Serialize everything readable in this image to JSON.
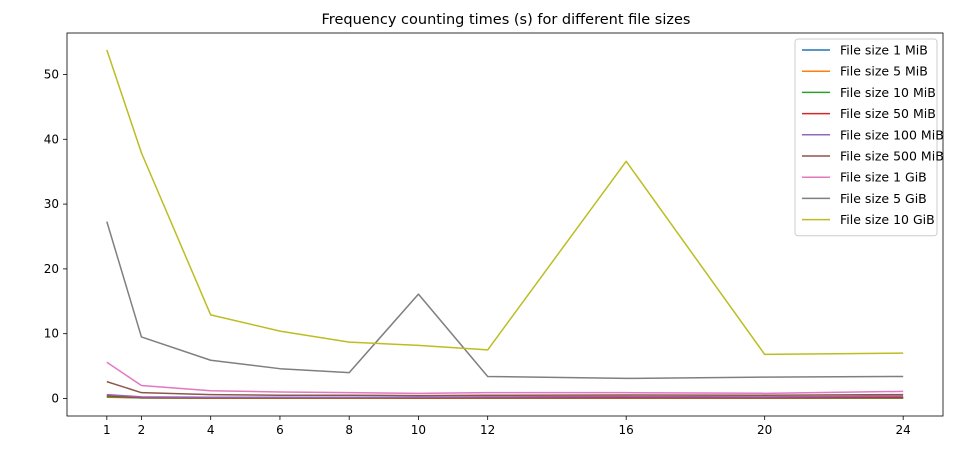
{
  "chart_data": {
    "type": "line",
    "title": "Frequency counting times (s) for different file sizes",
    "xlabel": "",
    "ylabel": "",
    "x": [
      1,
      2,
      4,
      6,
      8,
      10,
      12,
      16,
      20,
      24
    ],
    "xticks": [
      1,
      2,
      4,
      6,
      8,
      10,
      12,
      16,
      20,
      24
    ],
    "yticks": [
      0,
      10,
      20,
      30,
      40,
      50
    ],
    "xlim": [
      -0.15,
      25.15
    ],
    "ylim": [
      -2.7,
      56.4
    ],
    "grid": false,
    "legend_position": "upper right",
    "series": [
      {
        "name": "File size 1 MiB",
        "color": "#1f77b4",
        "values": [
          0.35,
          0.1,
          0.05,
          0.05,
          0.05,
          0.05,
          0.05,
          0.05,
          0.05,
          0.05
        ]
      },
      {
        "name": "File size 5 MiB",
        "color": "#ff7f0e",
        "values": [
          0.2,
          0.1,
          0.05,
          0.05,
          0.05,
          0.05,
          0.05,
          0.05,
          0.05,
          0.05
        ]
      },
      {
        "name": "File size 10 MiB",
        "color": "#2ca02c",
        "values": [
          0.25,
          0.1,
          0.08,
          0.07,
          0.07,
          0.07,
          0.07,
          0.07,
          0.07,
          0.07
        ]
      },
      {
        "name": "File size 50 MiB",
        "color": "#d62728",
        "values": [
          0.45,
          0.15,
          0.12,
          0.12,
          0.12,
          0.1,
          0.12,
          0.12,
          0.12,
          0.15
        ]
      },
      {
        "name": "File size 100 MiB",
        "color": "#9467bd",
        "values": [
          0.6,
          0.25,
          0.2,
          0.2,
          0.2,
          0.2,
          0.25,
          0.3,
          0.25,
          0.35
        ]
      },
      {
        "name": "File size 500 MiB",
        "color": "#8c564b",
        "values": [
          2.6,
          0.9,
          0.6,
          0.5,
          0.5,
          0.45,
          0.5,
          0.55,
          0.5,
          0.6
        ]
      },
      {
        "name": "File size 1 GiB",
        "color": "#e377c2",
        "values": [
          5.6,
          2.0,
          1.2,
          1.0,
          0.9,
          0.8,
          0.9,
          0.9,
          0.8,
          1.1
        ]
      },
      {
        "name": "File size 5 GiB",
        "color": "#7f7f7f",
        "values": [
          27.3,
          9.5,
          5.9,
          4.6,
          4.0,
          16.1,
          3.4,
          3.1,
          3.3,
          3.4
        ]
      },
      {
        "name": "File size 10 GiB",
        "color": "#bcbd22",
        "values": [
          53.8,
          37.9,
          12.9,
          10.4,
          8.7,
          8.2,
          7.5,
          36.6,
          6.8,
          7.0
        ]
      }
    ]
  }
}
